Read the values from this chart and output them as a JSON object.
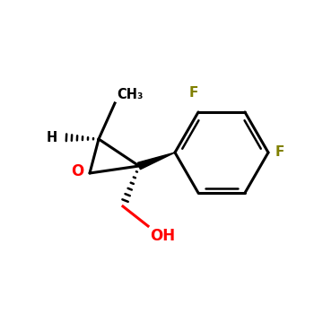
{
  "background_color": "#ffffff",
  "bond_color": "#000000",
  "oxygen_color": "#ff0000",
  "fluorine_color_ortho": "#808000",
  "fluorine_color_para": "#808000",
  "label_CH3": "CH₃",
  "label_H": "H",
  "label_O": "O",
  "label_F_ortho": "F",
  "label_F_para": "F",
  "label_OH": "OH",
  "figsize": [
    3.5,
    3.5
  ],
  "dpi": 100
}
